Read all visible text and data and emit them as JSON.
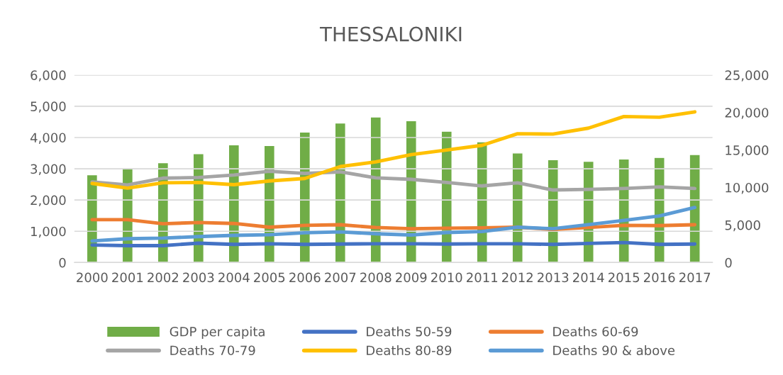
{
  "chart_data": {
    "type": "line",
    "title": "THESSALONIKI",
    "categories": [
      "2000",
      "2001",
      "2002",
      "2003",
      "2004",
      "2005",
      "2006",
      "2007",
      "2008",
      "2009",
      "2010",
      "2011",
      "2012",
      "2013",
      "2014",
      "2015",
      "2016",
      "2017"
    ],
    "series": [
      {
        "name": "GDP per capita",
        "type": "bar",
        "axis": "y2",
        "color": "#70ad47",
        "values": [
          11700,
          12600,
          13300,
          14500,
          15700,
          15600,
          17400,
          18600,
          19400,
          18900,
          17500,
          16100,
          14600,
          13700,
          13500,
          13800,
          14000,
          14400
        ]
      },
      {
        "name": "Deaths 50-59",
        "color": "#4472c4",
        "values": [
          560,
          540,
          540,
          620,
          580,
          600,
          580,
          590,
          600,
          600,
          590,
          600,
          600,
          580,
          610,
          640,
          580,
          590
        ]
      },
      {
        "name": "Deaths 60-69",
        "color": "#ed7d31",
        "values": [
          1370,
          1370,
          1240,
          1280,
          1250,
          1130,
          1190,
          1210,
          1120,
          1080,
          1100,
          1110,
          1130,
          1060,
          1120,
          1190,
          1180,
          1210
        ]
      },
      {
        "name": "Deaths 70-79",
        "color": "#a5a5a5",
        "values": [
          2580,
          2480,
          2700,
          2720,
          2800,
          2920,
          2850,
          2900,
          2710,
          2660,
          2560,
          2450,
          2550,
          2320,
          2340,
          2370,
          2420,
          2370
        ]
      },
      {
        "name": "Deaths 80-89",
        "color": "#ffc000",
        "values": [
          2530,
          2380,
          2550,
          2560,
          2490,
          2610,
          2690,
          3070,
          3220,
          3450,
          3600,
          3750,
          4120,
          4110,
          4300,
          4670,
          4650,
          4820
        ]
      },
      {
        "name": "Deaths 90 & above",
        "color": "#5b9bd5",
        "values": [
          690,
          760,
          780,
          830,
          870,
          890,
          950,
          980,
          920,
          880,
          960,
          990,
          1130,
          1080,
          1210,
          1350,
          1490,
          1760
        ]
      }
    ],
    "ylim": [
      0,
      6000
    ],
    "yticks": [
      {
        "value": 0,
        "label": "0"
      },
      {
        "value": 1000,
        "label": "1,000"
      },
      {
        "value": 2000,
        "label": "2,000"
      },
      {
        "value": 3000,
        "label": "3,000"
      },
      {
        "value": 4000,
        "label": "4,000"
      },
      {
        "value": 5000,
        "label": "5,000"
      },
      {
        "value": 6000,
        "label": "6,000"
      }
    ],
    "y2lim": [
      0,
      25000
    ],
    "y2ticks": [
      {
        "value": 0,
        "label": "0"
      },
      {
        "value": 5000,
        "label": "5,000"
      },
      {
        "value": 10000,
        "label": "10,000"
      },
      {
        "value": 15000,
        "label": "15,000"
      },
      {
        "value": 20000,
        "label": "20,000"
      },
      {
        "value": 25000,
        "label": "25,000"
      }
    ],
    "grid": "y",
    "legend": "bottom",
    "marker": "none",
    "line_style": "solid"
  }
}
